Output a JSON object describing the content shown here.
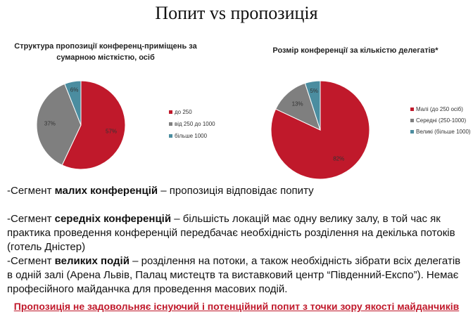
{
  "title": "Попит vs пропозиція",
  "chart_data": [
    {
      "type": "pie",
      "title": "Структура пропозиції конференц-приміщень за сумарною місткістю, осіб",
      "categories": [
        "до 250",
        "від 250 до 1000",
        "більше 1000"
      ],
      "values": [
        57,
        37,
        6
      ],
      "value_labels": [
        "57%",
        "37%",
        "6%"
      ],
      "colors": [
        "#c0192b",
        "#7f7f7f",
        "#4b8da0"
      ]
    },
    {
      "type": "pie",
      "title": "Розмір конференції за кількістю делегатів*",
      "categories": [
        "Малі (до 250 осіб)",
        "Середні (250-1000)",
        "Великі (більше 1000)"
      ],
      "values": [
        82,
        13,
        5
      ],
      "value_labels": [
        "82%",
        "13%",
        "5%"
      ],
      "colors": [
        "#c0192b",
        "#7f7f7f",
        "#4b8da0"
      ]
    }
  ],
  "paragraphs": [
    {
      "lead": "-Сегмент ",
      "emphasis": "малих конференцій",
      "rest": " – пропозиція відповідає попиту"
    },
    {
      "lead": "-Сегмент ",
      "emphasis": "середніх конференцій",
      "rest": " – більшість локацій має одну велику залу, в той час як практика проведення конференцій передбачає необхідність розділення на декілька потоків (готель Дністер)"
    },
    {
      "lead": "-Сегмент ",
      "emphasis": "великих подій",
      "rest": " – розділення на потоки, а також необхідність зібрати всіх делегатів в одній залі (Арена Львів, Палац мистецтв та виставковий центр “Південний-Експо”). Немає професійного майданчка для проведення масових подій."
    }
  ],
  "conclusion": "Пропозиція не задовольняє існуючий і потенційний попит з точки зору якості майданчиків"
}
